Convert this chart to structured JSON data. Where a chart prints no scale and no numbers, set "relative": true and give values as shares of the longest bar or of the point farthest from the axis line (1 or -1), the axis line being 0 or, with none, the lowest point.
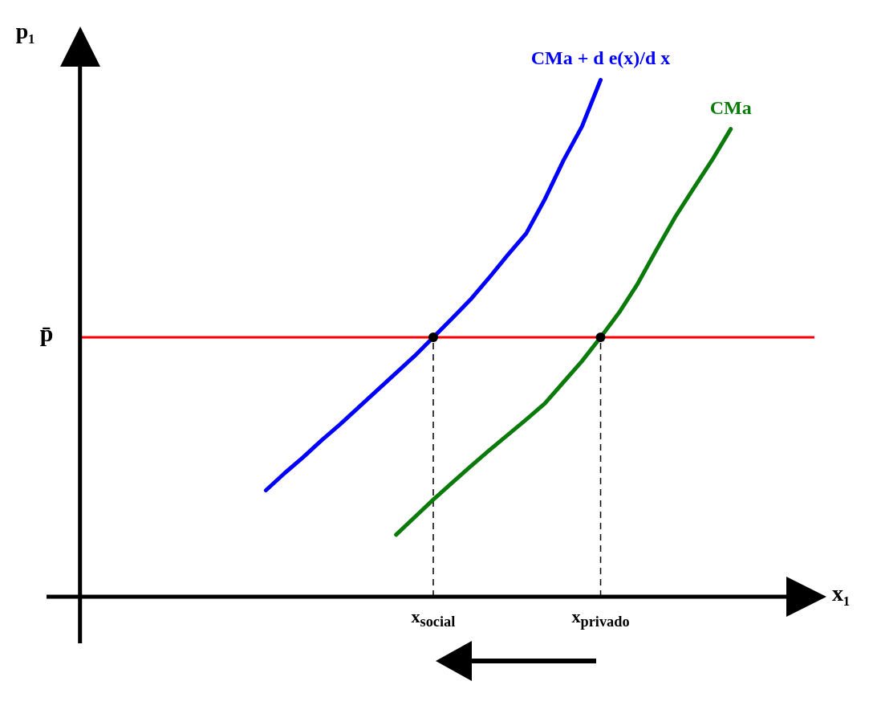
{
  "chart_data": {
    "type": "line",
    "relative": true,
    "xlabel": "x₁",
    "ylabel": "p₁",
    "categories": [
      null,
      null,
      null,
      null,
      null,
      null,
      null,
      null,
      null,
      null,
      null,
      null,
      null,
      null,
      null,
      null,
      null,
      null,
      null,
      "x$_{social}$",
      null,
      null,
      null,
      null,
      null,
      null,
      null,
      null,
      "x$_{privado}$",
      null,
      null,
      null,
      null,
      null,
      null,
      null,
      null,
      null,
      null,
      null
    ],
    "ref_lines": [
      {
        "axis": "y",
        "value": 0.502,
        "label": "p̄",
        "color": "#ff0000"
      }
    ],
    "series": [
      {
        "name": "CMa + d e(x)/d x",
        "color": "#0000ff",
        "marker": "none",
        "values": [
          null,
          null,
          null,
          null,
          null,
          null,
          null,
          null,
          null,
          null,
          0.206,
          0.239,
          0.27,
          0.303,
          0.334,
          0.367,
          0.4,
          0.433,
          0.466,
          0.502,
          0.538,
          0.575,
          0.617,
          0.661,
          0.703,
          0.769,
          0.844,
          0.91,
          1,
          null,
          null,
          null,
          null,
          null,
          null,
          null,
          null,
          null,
          null,
          null
        ]
      },
      {
        "name": "CMa",
        "color": "#0a7a0a",
        "marker": "none",
        "values": [
          null,
          null,
          null,
          null,
          null,
          null,
          null,
          null,
          null,
          null,
          null,
          null,
          null,
          null,
          null,
          null,
          null,
          0.12,
          0.154,
          0.188,
          0.22,
          0.252,
          0.283,
          0.313,
          0.343,
          0.374,
          0.415,
          0.456,
          0.502,
          0.55,
          0.606,
          0.671,
          0.734,
          0.79,
          0.845,
          0.905,
          null,
          null,
          null,
          null
        ]
      },
      {
        "type": "lollipop",
        "color": "#000000",
        "marker": "circle",
        "line_style": "dashed",
        "values": [
          null,
          null,
          null,
          null,
          null,
          null,
          null,
          null,
          null,
          null,
          null,
          null,
          null,
          null,
          null,
          null,
          null,
          null,
          null,
          0.502,
          null,
          null,
          null,
          null,
          null,
          null,
          null,
          null,
          0.502,
          null,
          null,
          null,
          null,
          null,
          null,
          null,
          null,
          null,
          null,
          null
        ]
      }
    ]
  }
}
